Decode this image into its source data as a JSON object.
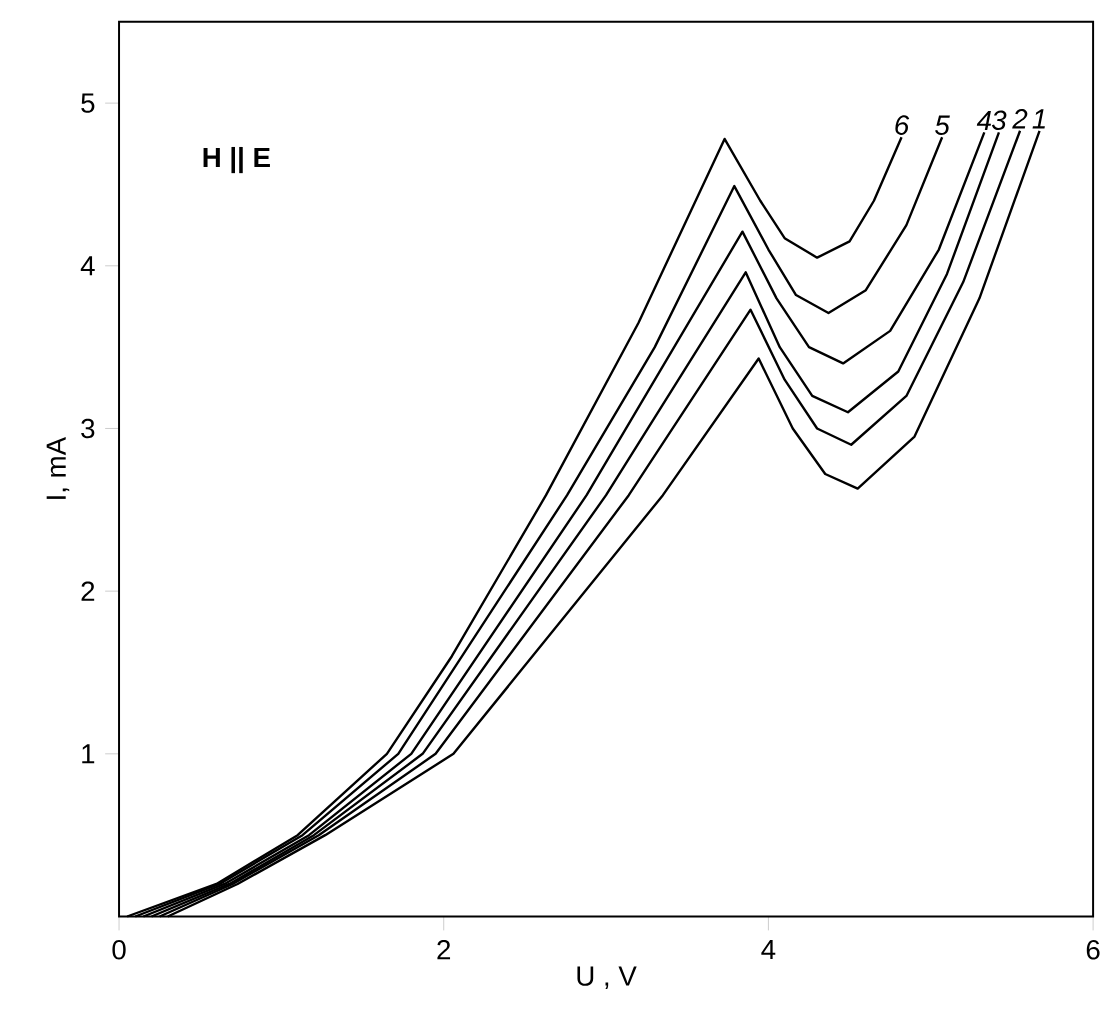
{
  "chart_data": {
    "type": "line",
    "xlabel": "U , V",
    "ylabel": "I, mA",
    "annotations": [
      "H || E"
    ],
    "xlim": [
      0,
      6
    ],
    "ylim": [
      0,
      5.5
    ],
    "xticks": [
      0,
      2,
      4,
      6
    ],
    "yticks": [
      1,
      2,
      3,
      4,
      5
    ],
    "legend": false,
    "marker": "none",
    "line_style": "solid",
    "grid": false,
    "series": [
      {
        "name": "1",
        "color": "#000000",
        "x": [
          0.3,
          0.73,
          1.27,
          2.06,
          3.35,
          3.94,
          4.15,
          4.35,
          4.55,
          4.9,
          5.3,
          5.67
        ],
        "values": [
          0,
          0.2,
          0.5,
          1,
          2.59,
          3.43,
          3.0,
          2.72,
          2.63,
          2.95,
          3.8,
          4.83
        ]
      },
      {
        "name": "2",
        "color": "#000000",
        "x": [
          0.25,
          0.7,
          1.23,
          1.95,
          3.14,
          3.89,
          4.1,
          4.3,
          4.51,
          4.85,
          5.2,
          5.55
        ],
        "values": [
          0,
          0.2,
          0.5,
          1,
          2.59,
          3.73,
          3.3,
          3.0,
          2.9,
          3.2,
          3.9,
          4.83
        ]
      },
      {
        "name": "3",
        "color": "#000000",
        "x": [
          0.2,
          0.68,
          1.2,
          1.87,
          3.0,
          3.86,
          4.07,
          4.27,
          4.49,
          4.8,
          5.1,
          5.42
        ],
        "values": [
          0,
          0.2,
          0.5,
          1,
          2.59,
          3.96,
          3.5,
          3.2,
          3.1,
          3.35,
          3.95,
          4.82
        ]
      },
      {
        "name": "4",
        "color": "#000000",
        "x": [
          0.15,
          0.65,
          1.17,
          1.8,
          2.88,
          3.84,
          4.05,
          4.25,
          4.46,
          4.75,
          5.05,
          5.33
        ],
        "values": [
          0,
          0.2,
          0.5,
          1,
          2.59,
          4.21,
          3.8,
          3.5,
          3.4,
          3.6,
          4.1,
          4.82
        ]
      },
      {
        "name": "5",
        "color": "#000000",
        "x": [
          0.1,
          0.62,
          1.13,
          1.72,
          2.76,
          3.3,
          3.79,
          4.0,
          4.17,
          4.37,
          4.6,
          4.85,
          5.07
        ],
        "values": [
          0,
          0.2,
          0.5,
          1,
          2.59,
          3.5,
          4.49,
          4.1,
          3.82,
          3.71,
          3.85,
          4.25,
          4.79
        ]
      },
      {
        "name": "6",
        "color": "#000000",
        "x": [
          0.05,
          0.6,
          1.1,
          1.65,
          2.05,
          2.63,
          3.2,
          3.73,
          3.95,
          4.1,
          4.3,
          4.5,
          4.65,
          4.82
        ],
        "values": [
          0,
          0.2,
          0.5,
          1,
          1.6,
          2.59,
          3.65,
          4.78,
          4.4,
          4.17,
          4.05,
          4.15,
          4.4,
          4.79
        ]
      }
    ]
  }
}
